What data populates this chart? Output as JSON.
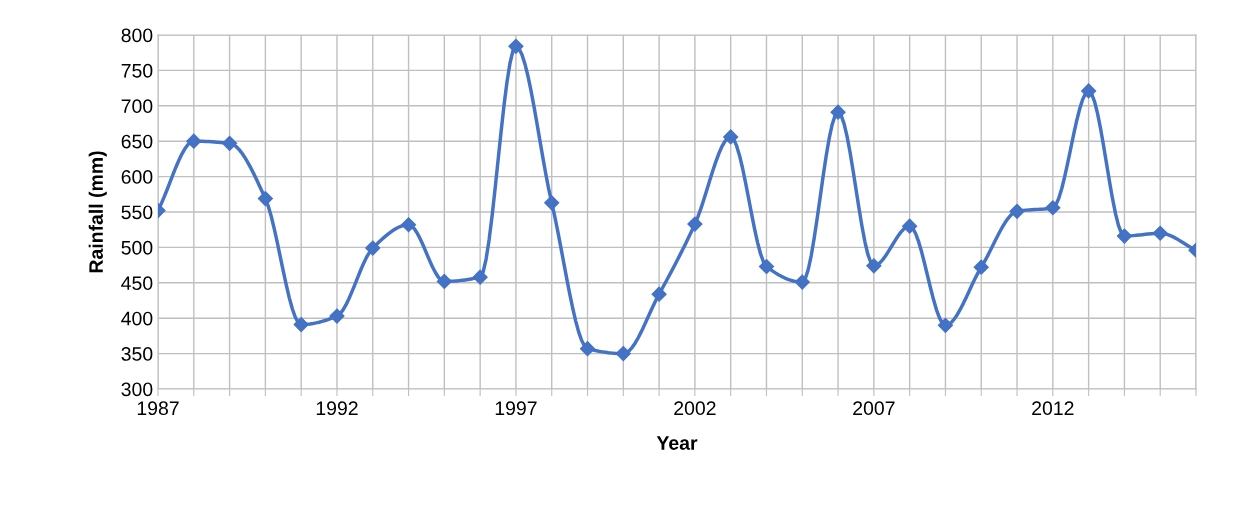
{
  "chart_data": {
    "type": "line",
    "xlabel": "Year",
    "ylabel": "Rainfall (mm)",
    "x": [
      1987,
      1988,
      1989,
      1990,
      1991,
      1992,
      1993,
      1994,
      1995,
      1996,
      1997,
      1998,
      1999,
      2000,
      2001,
      2002,
      2003,
      2004,
      2005,
      2006,
      2007,
      2008,
      2009,
      2010,
      2011,
      2012,
      2013,
      2014,
      2015,
      2016
    ],
    "series": [
      {
        "color": "#4472c4",
        "values": [
          552,
          650,
          647,
          569,
          391,
          403,
          499,
          532,
          452,
          458,
          784,
          563,
          357,
          350,
          434,
          533,
          656,
          473,
          451,
          691,
          474,
          530,
          390,
          472,
          551,
          556,
          721,
          516,
          520,
          496
        ]
      }
    ],
    "xlim": [
      1987,
      2016
    ],
    "xticks": [
      1987,
      {
        "value": 1988,
        "label": null
      },
      {
        "value": 1989,
        "label": null
      },
      {
        "value": 1990,
        "label": null
      },
      {
        "value": 1991,
        "label": null
      },
      1992,
      {
        "value": 1993,
        "label": null
      },
      {
        "value": 1994,
        "label": null
      },
      {
        "value": 1995,
        "label": null
      },
      {
        "value": 1996,
        "label": null
      },
      1997,
      {
        "value": 1998,
        "label": null
      },
      {
        "value": 1999,
        "label": null
      },
      {
        "value": 2000,
        "label": null
      },
      {
        "value": 2001,
        "label": null
      },
      2002,
      {
        "value": 2003,
        "label": null
      },
      {
        "value": 2004,
        "label": null
      },
      {
        "value": 2005,
        "label": null
      },
      {
        "value": 2006,
        "label": null
      },
      2007,
      {
        "value": 2008,
        "label": null
      },
      {
        "value": 2009,
        "label": null
      },
      {
        "value": 2010,
        "label": null
      },
      {
        "value": 2011,
        "label": null
      },
      2012,
      {
        "value": 2013,
        "label": null
      },
      {
        "value": 2014,
        "label": null
      },
      {
        "value": 2015,
        "label": null
      },
      {
        "value": 2016,
        "label": null
      }
    ],
    "ylim": [
      300,
      800
    ],
    "yticks": [
      300,
      350,
      400,
      450,
      500,
      550,
      600,
      650,
      700,
      750,
      800
    ],
    "grid": true,
    "marker": "diamond",
    "line_style": "solid"
  }
}
